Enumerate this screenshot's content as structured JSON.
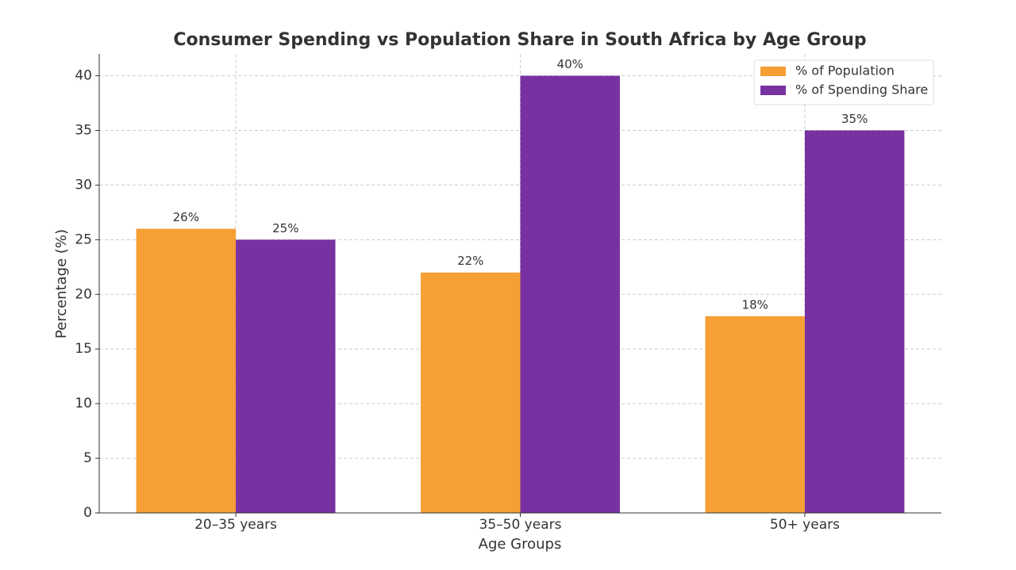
{
  "chart_data": {
    "type": "bar",
    "title": "Consumer Spending vs Population Share in South Africa by Age Group",
    "x_label": "Age Groups",
    "y_label": "Percentage (%)",
    "categories": [
      "20–35 years",
      "35–50 years",
      "50+ years"
    ],
    "series": [
      {
        "name": "% of Population",
        "color": "#f59f35",
        "values": [
          26,
          22,
          18
        ],
        "value_labels": [
          "26%",
          "22%",
          "18%"
        ]
      },
      {
        "name": "% of Spending Share",
        "color": "#7731a0",
        "values": [
          25,
          40,
          35
        ],
        "value_labels": [
          "25%",
          "40%",
          "35%"
        ]
      }
    ],
    "ylim": [
      0,
      42
    ],
    "yticks": [
      0,
      5,
      10,
      15,
      20,
      25,
      30,
      35,
      40
    ],
    "grid": true,
    "legend": "upper right"
  }
}
